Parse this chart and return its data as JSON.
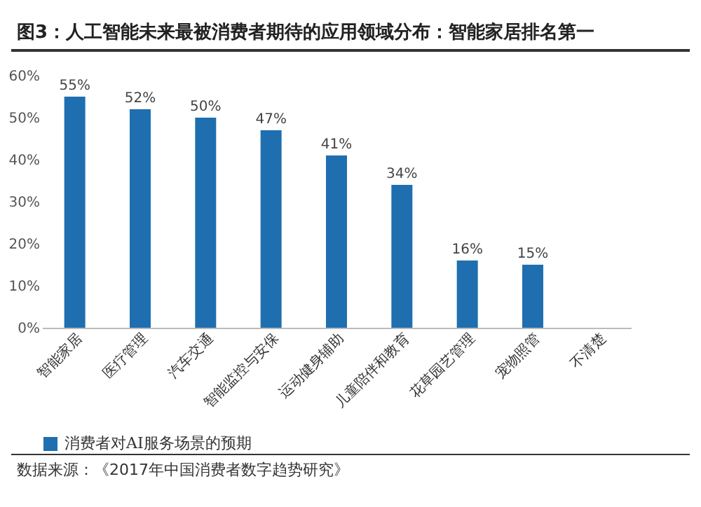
{
  "chart_data": {
    "type": "bar",
    "title": "图3：人工智能未来最被消费者期待的应用领域分布：智能家居排名第一",
    "categories": [
      "智能家居",
      "医疗管理",
      "汽车交通",
      "智能监控与安保",
      "运动健身辅助",
      "儿童陪伴和教育",
      "花草园艺管理",
      "宠物照管",
      "不清楚"
    ],
    "series": [
      {
        "name": "消费者对AI服务场景的预期",
        "color": "#1f6fb0",
        "values": [
          55,
          52,
          50,
          47,
          41,
          34,
          16,
          15,
          null
        ],
        "value_labels": [
          "55%",
          "52%",
          "50%",
          "47%",
          "41%",
          "34%",
          "16%",
          "15%",
          null
        ]
      }
    ],
    "ylim": [
      0,
      60
    ],
    "yticks": [
      {
        "value": 0,
        "label": "0%"
      },
      {
        "value": 10,
        "label": "10%"
      },
      {
        "value": 20,
        "label": "20%"
      },
      {
        "value": 30,
        "label": "30%"
      },
      {
        "value": 40,
        "label": "40%"
      },
      {
        "value": 50,
        "label": "50%"
      },
      {
        "value": 60,
        "label": "60%"
      }
    ],
    "grid": false,
    "legend": "bottom",
    "annotations": [
      "数据来源：《2017年中国消费者数字趋势研究》"
    ]
  }
}
